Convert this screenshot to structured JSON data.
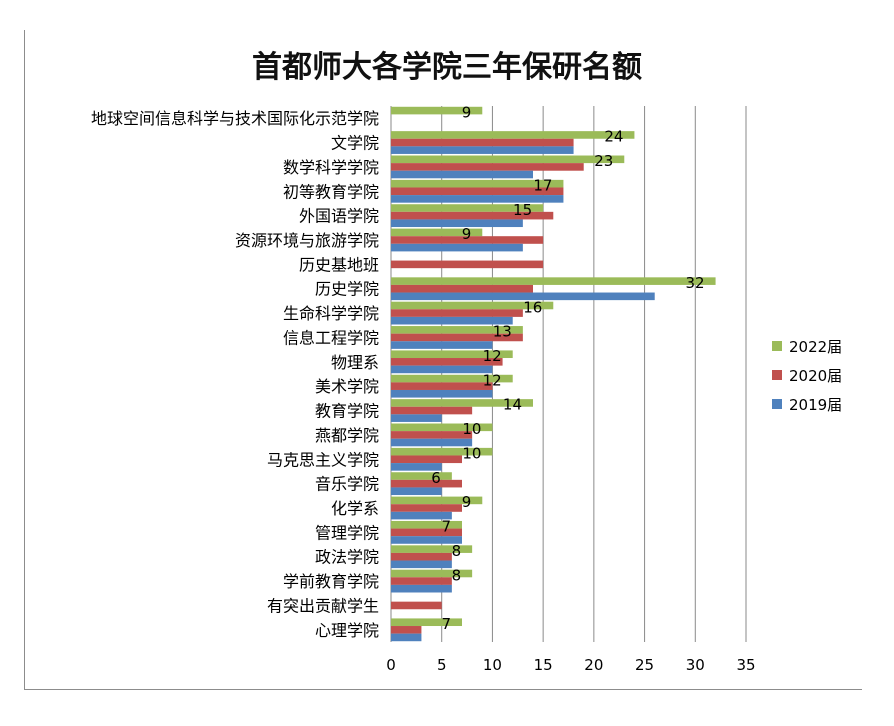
{
  "chart_data": {
    "type": "bar",
    "orientation": "horizontal",
    "title": "首都师大各学院三年保研名额",
    "categories": [
      "地球空间信息科学与技术国际化示范学院",
      "文学院",
      "数学科学学院",
      "初等教育学院",
      "外国语学院",
      "资源环境与旅游学院",
      "历史基地班",
      "历史学院",
      "生命科学学院",
      "信息工程学院",
      "物理系",
      "美术学院",
      "教育学院",
      "燕都学院",
      "马克思主义学院",
      "音乐学院",
      "化学系",
      "管理学院",
      "政法学院",
      "学前教育学院",
      "有突出贡献学生",
      "心理学院"
    ],
    "series": [
      {
        "name": "2022届",
        "color": "#9bbb59",
        "values": [
          9,
          24,
          23,
          17,
          15,
          9,
          0,
          32,
          16,
          13,
          12,
          12,
          14,
          10,
          10,
          6,
          9,
          7,
          8,
          8,
          0,
          7
        ]
      },
      {
        "name": "2020届",
        "color": "#c0504d",
        "values": [
          0,
          18,
          19,
          17,
          16,
          15,
          15,
          14,
          13,
          13,
          11,
          10,
          8,
          8,
          7,
          7,
          7,
          7,
          6,
          6,
          5,
          3
        ]
      },
      {
        "name": "2019届",
        "color": "#4f81bd",
        "values": [
          0,
          18,
          14,
          17,
          13,
          13,
          0,
          26,
          12,
          10,
          10,
          10,
          5,
          8,
          5,
          5,
          6,
          7,
          6,
          6,
          0,
          3
        ]
      }
    ],
    "data_labels_series": "2022届",
    "xlim": [
      0,
      35
    ],
    "xticks": [
      0,
      5,
      10,
      15,
      20,
      25,
      30,
      35
    ],
    "grid": "vertical",
    "legend": "right"
  }
}
